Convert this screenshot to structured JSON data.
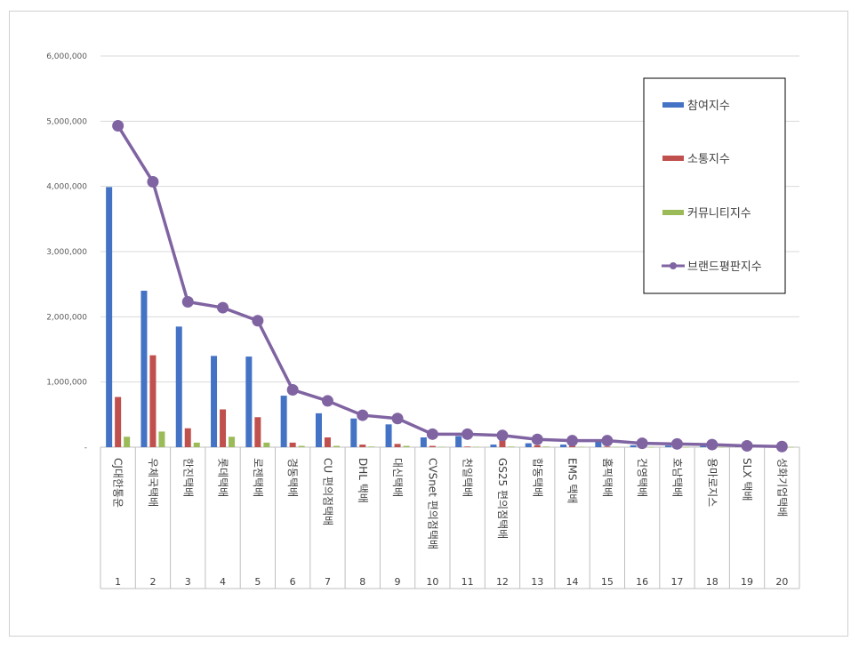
{
  "chart_data": {
    "type": "bar",
    "categories": [
      "CJ대한통운",
      "우체국택배",
      "한진택배",
      "롯데택배",
      "로젠택배",
      "경동택배",
      "CU 편의점택배",
      "DHL 택배",
      "대신택배",
      "CVSnet 편의점택배",
      "천일택배",
      "GS25 편의점택배",
      "합동택배",
      "EMS 택배",
      "홈픽택배",
      "건영택배",
      "호남택배",
      "용마로지스",
      "SLX 택배",
      "성화기업택배"
    ],
    "ranks": [
      "1",
      "2",
      "3",
      "4",
      "5",
      "6",
      "7",
      "8",
      "9",
      "10",
      "11",
      "12",
      "13",
      "14",
      "15",
      "16",
      "17",
      "18",
      "19",
      "20"
    ],
    "ylim": [
      0,
      6000000
    ],
    "yticks": [
      {
        "value": 0,
        "label": "-"
      },
      {
        "value": 1000000,
        "label": "1,000,000"
      },
      {
        "value": 2000000,
        "label": "2,000,000"
      },
      {
        "value": 3000000,
        "label": "3,000,000"
      },
      {
        "value": 4000000,
        "label": "4,000,000"
      },
      {
        "value": 5000000,
        "label": "5,000,000"
      },
      {
        "value": 6000000,
        "label": "6,000,000"
      }
    ],
    "grid": true,
    "legend_position": "top-right",
    "series": [
      {
        "name": "참여지수",
        "kind": "bar",
        "color": "#4472C4",
        "values": [
          3990000,
          2400000,
          1850000,
          1400000,
          1390000,
          790000,
          520000,
          440000,
          350000,
          150000,
          170000,
          40000,
          60000,
          40000,
          90000,
          30000,
          25000,
          20000,
          10000,
          5000
        ]
      },
      {
        "name": "소통지수",
        "kind": "bar",
        "color": "#C0504D",
        "values": [
          770000,
          1410000,
          290000,
          580000,
          460000,
          70000,
          150000,
          40000,
          50000,
          20000,
          10000,
          130000,
          30000,
          20000,
          10000,
          10000,
          10000,
          20000,
          5000,
          5000
        ]
      },
      {
        "name": "커뮤니티지수",
        "kind": "bar",
        "color": "#9BBB59",
        "values": [
          160000,
          240000,
          70000,
          160000,
          70000,
          20000,
          20000,
          10000,
          20000,
          5000,
          5000,
          10000,
          10000,
          5000,
          5000,
          3000,
          3000,
          3000,
          2000,
          2000
        ]
      },
      {
        "name": "브랜드평판지수",
        "kind": "line",
        "color": "#8064A2",
        "values": [
          4930000,
          4070000,
          2230000,
          2140000,
          1940000,
          880000,
          710000,
          490000,
          440000,
          200000,
          200000,
          180000,
          120000,
          100000,
          100000,
          60000,
          50000,
          40000,
          20000,
          10000
        ]
      }
    ]
  }
}
